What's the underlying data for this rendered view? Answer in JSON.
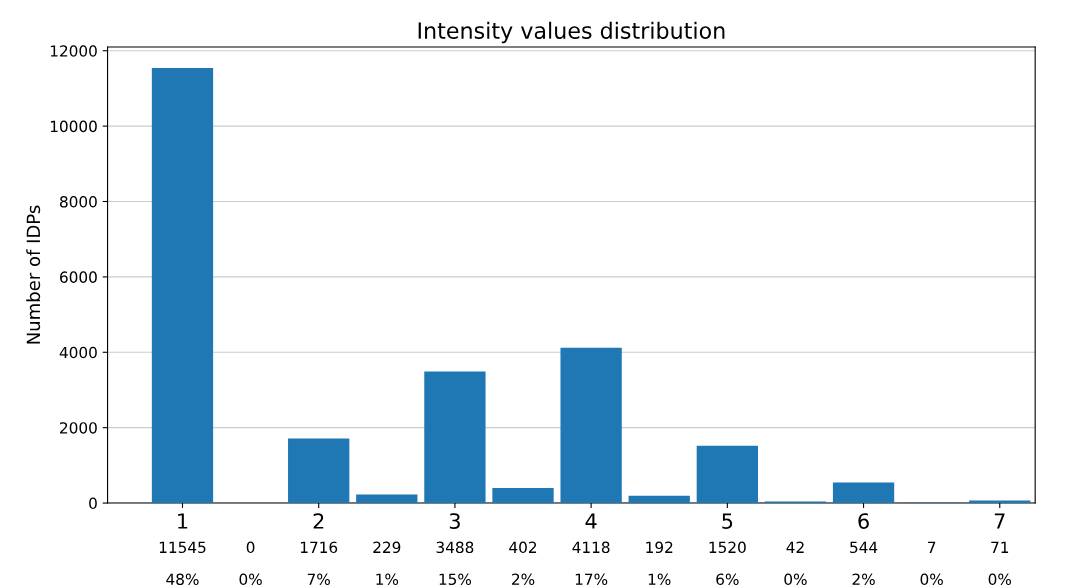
{
  "chart_data": {
    "type": "histogram",
    "title": "Intensity values distribution",
    "ylabel": "Number of IDPs",
    "bins": [
      0.75,
      1.25,
      1.75,
      2.25,
      2.75,
      3.25,
      3.75,
      4.25,
      4.75,
      5.25,
      5.75,
      6.25,
      6.75,
      7.25
    ],
    "values": [
      11545,
      0,
      1716,
      229,
      3488,
      402,
      4118,
      192,
      1520,
      42,
      544,
      7,
      71
    ],
    "annotations": [
      "48%",
      "0%",
      "7%",
      "1%",
      "15%",
      "2%",
      "17%",
      "1%",
      "6%",
      "0%",
      "2%",
      "0%",
      "0%"
    ],
    "data_labels": true,
    "color": "#1f77b4",
    "xlim": [
      0.45,
      7.26
    ],
    "xticks": [
      1,
      2,
      3,
      4,
      5,
      6,
      7
    ],
    "ylim": [
      0,
      12100
    ],
    "yticks": [
      0,
      2000,
      4000,
      6000,
      8000,
      10000,
      12000
    ],
    "grid": "y"
  }
}
